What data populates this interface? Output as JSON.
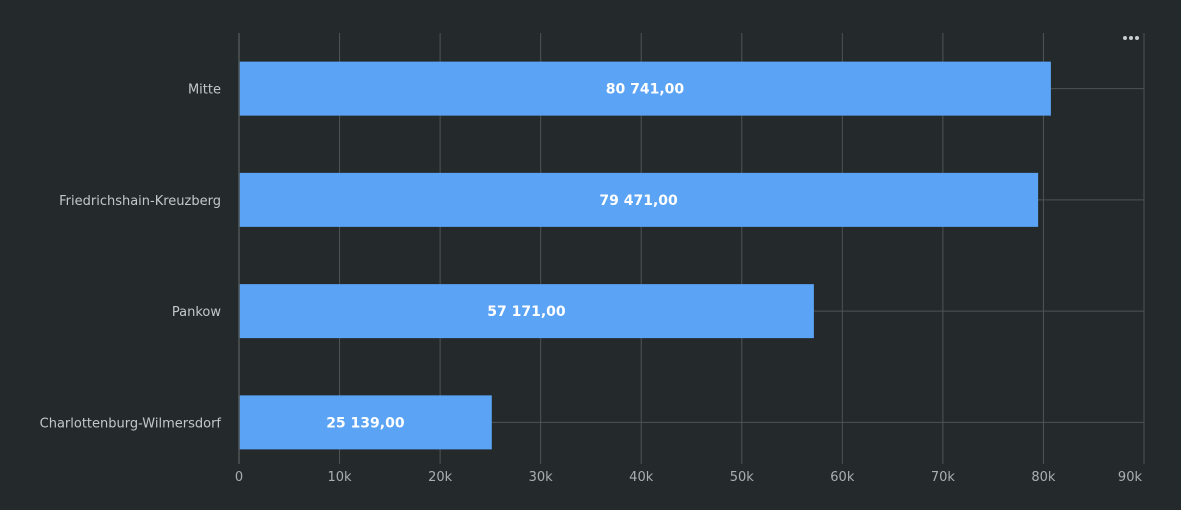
{
  "chart_data": {
    "type": "bar",
    "orientation": "horizontal",
    "categories": [
      "Mitte",
      "Friedrichshain-Kreuzberg",
      "Pankow",
      "Charlottenburg-Wilmersdorf"
    ],
    "values": [
      80741,
      79471,
      57171,
      25139
    ],
    "data_labels": [
      "80 741,00",
      "79 471,00",
      "57 171,00",
      "25 139,00"
    ],
    "xlim": [
      0,
      90000
    ],
    "x_ticks": [
      0,
      10000,
      20000,
      30000,
      40000,
      50000,
      60000,
      70000,
      80000,
      90000
    ],
    "x_tick_labels": [
      "0",
      "10k",
      "20k",
      "30k",
      "40k",
      "50k",
      "60k",
      "70k",
      "80k",
      "90k"
    ],
    "grid": true,
    "legend": "none",
    "colors": {
      "bar": "#5ba3f5",
      "background": "#242a2b",
      "grid": "#4e5455",
      "axis_text": "#a9aeb1",
      "category_text": "#c3c7ca",
      "data_label": "#ffffff"
    }
  },
  "toolbar": {
    "menu_icon": "more-horizontal-icon"
  }
}
